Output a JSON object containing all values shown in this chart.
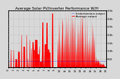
{
  "title": "Average Solar PV/Inverter Performance W/H",
  "legend_labels": [
    "Instantaneous output",
    "Average output"
  ],
  "background_color": "#d8d8d8",
  "plot_bg_color": "#d8d8d8",
  "grid_color": "#aaaaaa",
  "bar_color": "#ff0000",
  "line_color": "#0000ff",
  "avg_line_color": "#ff0000",
  "ylim": [
    0,
    3500
  ],
  "ytick_values": [
    500,
    1000,
    1500,
    2000,
    2500,
    3000,
    3500
  ],
  "ytick_labels": [
    "500",
    "1.0k",
    "1.5k",
    "2.0k",
    "2.5k",
    "3.0k",
    "3.5k"
  ],
  "title_fontsize": 4.0,
  "tick_fontsize": 2.8,
  "legend_fontsize": 2.8
}
